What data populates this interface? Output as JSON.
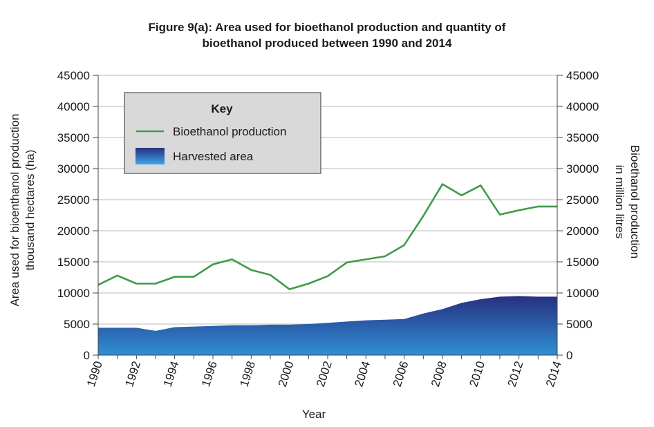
{
  "title_line1": "Figure 9(a): Area used for bioethanol production and quantity of",
  "title_line2": "bioethanol produced between 1990 and 2014",
  "chart_data": {
    "type": "line",
    "xlabel": "Year",
    "ylabel_left": [
      "Area used for bioenthanol production",
      "thousand hectares (ha)"
    ],
    "ylabel_right": [
      "Bioethanol production",
      "in million litres"
    ],
    "ylim": [
      0,
      45000
    ],
    "yticks": [
      0,
      5000,
      10000,
      15000,
      20000,
      25000,
      30000,
      35000,
      40000,
      45000
    ],
    "ytick_labels": [
      "0",
      "5000",
      "10000",
      "15000",
      "20000",
      "25000",
      "30000",
      "35000",
      "40000",
      "45000"
    ],
    "xlim": [
      1990,
      2014
    ],
    "xtick_labels": [
      "1990",
      "1992",
      "1994",
      "1996",
      "1998",
      "2000",
      "2002",
      "2004",
      "2006",
      "2008",
      "2010",
      "2012",
      "2014"
    ],
    "grid": true,
    "legend": {
      "title": "Key",
      "placement": "top-left",
      "entries": [
        "Bioethanol production",
        "Harvested area"
      ]
    },
    "series": [
      {
        "name": "Bioethanol production",
        "type": "line",
        "color": "#3f9a4a",
        "x": [
          1990,
          1991,
          1992,
          1993,
          1994,
          1995,
          1996,
          1997,
          1998,
          1999,
          2000,
          2001,
          2002,
          2003,
          2004,
          2005,
          2006,
          2007,
          2008,
          2009,
          2010,
          2011,
          2012,
          2013,
          2014
        ],
        "values": [
          11300,
          12800,
          11500,
          11500,
          12600,
          12600,
          14600,
          15400,
          13700,
          12900,
          10600,
          11500,
          12700,
          14900,
          15400,
          15900,
          17700,
          22400,
          27500,
          25700,
          27300,
          22600,
          23300,
          23900,
          23900
        ]
      },
      {
        "name": "Harvested area",
        "type": "area",
        "color": "#2a3f91",
        "x": [
          1990,
          1991,
          1992,
          1993,
          1994,
          1995,
          1996,
          1997,
          1998,
          1999,
          2000,
          2001,
          2002,
          2003,
          2004,
          2005,
          2006,
          2007,
          2008,
          2009,
          2010,
          2011,
          2012,
          2013,
          2014
        ],
        "values": [
          4400,
          4400,
          4400,
          3900,
          4500,
          4600,
          4700,
          4800,
          4800,
          4900,
          4900,
          5000,
          5200,
          5400,
          5600,
          5700,
          5800,
          6700,
          7400,
          8400,
          9000,
          9400,
          9500,
          9400,
          9400
        ]
      }
    ]
  }
}
